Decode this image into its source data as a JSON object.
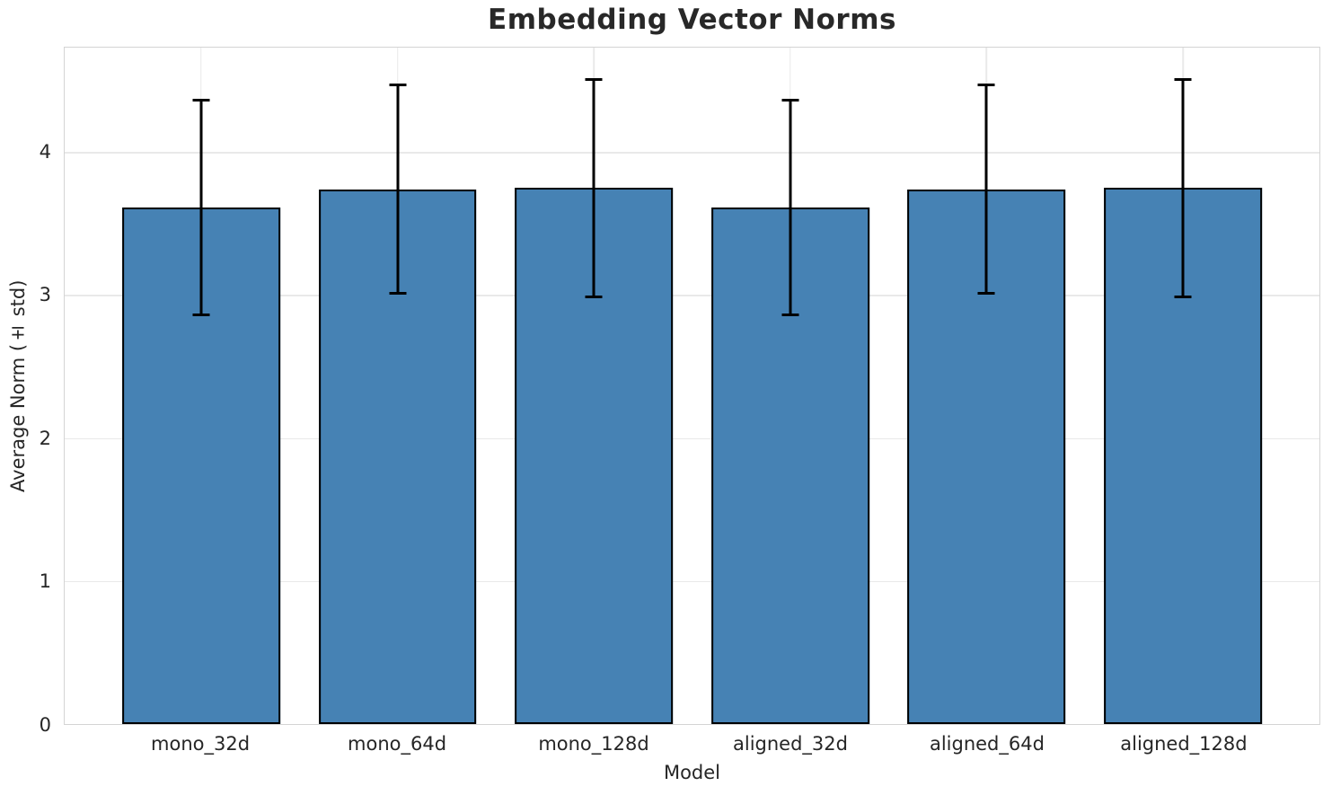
{
  "chart_data": {
    "type": "bar",
    "title": "Embedding Vector Norms",
    "xlabel": "Model",
    "ylabel": "Average Norm (± std)",
    "categories": [
      "mono_32d",
      "mono_64d",
      "mono_128d",
      "aligned_32d",
      "aligned_64d",
      "aligned_128d"
    ],
    "series": [
      {
        "name": "Average Norm",
        "values": [
          3.61,
          3.74,
          3.75,
          3.61,
          3.74,
          3.75
        ],
        "errors": [
          0.75,
          0.73,
          0.76,
          0.75,
          0.73,
          0.76
        ]
      }
    ],
    "yticks": [
      0,
      1,
      2,
      3,
      4
    ],
    "ylim": [
      0,
      4.73
    ],
    "grid": true,
    "legend": "none",
    "colors": {
      "bar_fill": "#4682B4",
      "bar_edge": "#000000",
      "error_bar": "#000000",
      "gridline": "#e9e9e9",
      "spine": "#d4d4d4",
      "text": "#262626"
    }
  }
}
